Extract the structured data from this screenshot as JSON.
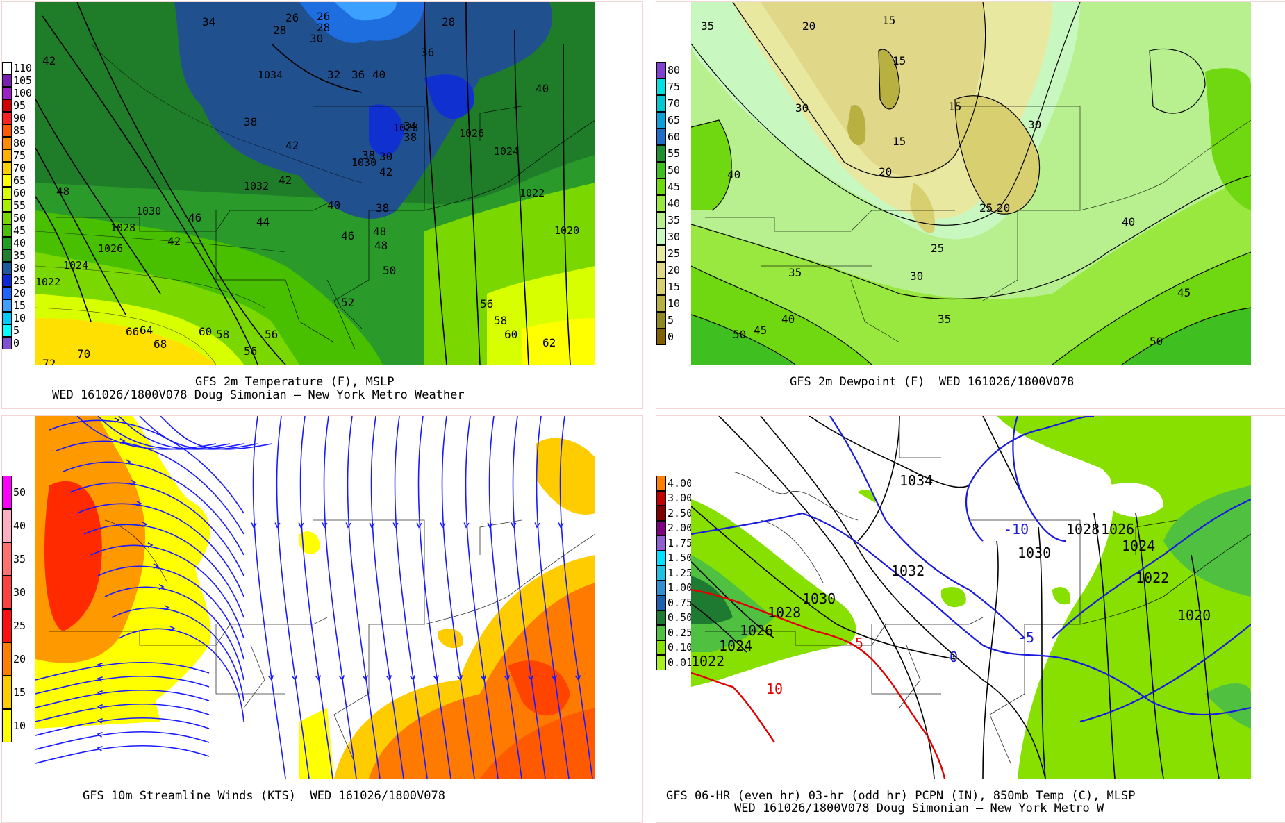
{
  "panels": {
    "temp": {
      "title": "GFS 2m Temperature (F), MSLP",
      "subtitle": "WED 161026/1800V078 Doug Simonian — New York Metro Weather",
      "scale": [
        "110",
        "105",
        "100",
        "95",
        "90",
        "85",
        "80",
        "75",
        "70",
        "65",
        "60",
        "55",
        "50",
        "45",
        "40",
        "35",
        "30",
        "25",
        "20",
        "15",
        "10",
        "5",
        "0"
      ],
      "scale_colors": [
        "#ffffff",
        "#7a1fb0",
        "#a020c8",
        "#d40000",
        "#ff2020",
        "#ff5a00",
        "#ff8c00",
        "#ffb000",
        "#ffd000",
        "#ffff00",
        "#d8ff00",
        "#a8f000",
        "#7ad800",
        "#48c000",
        "#20a020",
        "#208030",
        "#1e5aa0",
        "#0a28d8",
        "#1e64ff",
        "#3ca0ff",
        "#00ccff",
        "#00ffff",
        "#8050d0"
      ],
      "labels": [
        "26",
        "28",
        "30",
        "34",
        "36",
        "38",
        "40",
        "42",
        "44",
        "46",
        "48",
        "50",
        "56",
        "58",
        "60",
        "62",
        "64",
        "66",
        "68",
        "70",
        "72",
        "1034",
        "1032",
        "1030",
        "1028",
        "1026",
        "1024",
        "1022",
        "1020"
      ]
    },
    "dew": {
      "title": "GFS 2m Dewpoint (F)  WED 161026/1800V078",
      "scale": [
        "80",
        "75",
        "70",
        "65",
        "60",
        "55",
        "50",
        "45",
        "40",
        "35",
        "30",
        "25",
        "20",
        "15",
        "10",
        "5",
        "0"
      ],
      "scale_colors": [
        "#8040d0",
        "#00e0e0",
        "#00c8d0",
        "#10a0d8",
        "#1e6ec8",
        "#1e9030",
        "#40c020",
        "#70d810",
        "#98e840",
        "#b8f090",
        "#c8f8c0",
        "#e8e8a0",
        "#e0d888",
        "#d8d070",
        "#b8b040",
        "#908820",
        "#806000"
      ],
      "labels": [
        "15",
        "20",
        "25",
        "30",
        "35",
        "40",
        "45",
        "50"
      ]
    },
    "wind": {
      "title": "GFS 10m Streamline Winds (KTS)  WED 161026/1800V078",
      "scale": [
        "50",
        "40",
        "35",
        "30",
        "25",
        "20",
        "15",
        "10"
      ],
      "scale_colors": [
        "#ff00ff",
        "#ffb0c0",
        "#ff7070",
        "#ff4040",
        "#ff1010",
        "#ff8000",
        "#ffcc00",
        "#ffff00"
      ]
    },
    "precip": {
      "title": "GFS 06-HR (even hr) 03-hr (odd hr) PCPN (IN), 850mb Temp (C), MLSP",
      "subtitle": "WED 161026/1800V078 Doug Simonian — New York Metro W",
      "scale": [
        "4.00",
        "3.00",
        "2.50",
        "2.00",
        "1.75",
        "1.50",
        "1.25",
        "1.00",
        "0.75",
        "0.50",
        "0.25",
        "0.10",
        "0.01"
      ],
      "scale_colors": [
        "#ff8000",
        "#c00000",
        "#800000",
        "#800080",
        "#9060d0",
        "#00e0ff",
        "#20c0e0",
        "#3090d0",
        "#1e60b0",
        "#1e7a30",
        "#50c040",
        "#88e000",
        "#a8f020"
      ],
      "labels": [
        "1034",
        "1032",
        "1030",
        "1028",
        "1026",
        "1024",
        "1022",
        "1020",
        "-10",
        "-5",
        "0",
        "5",
        "10"
      ]
    }
  }
}
